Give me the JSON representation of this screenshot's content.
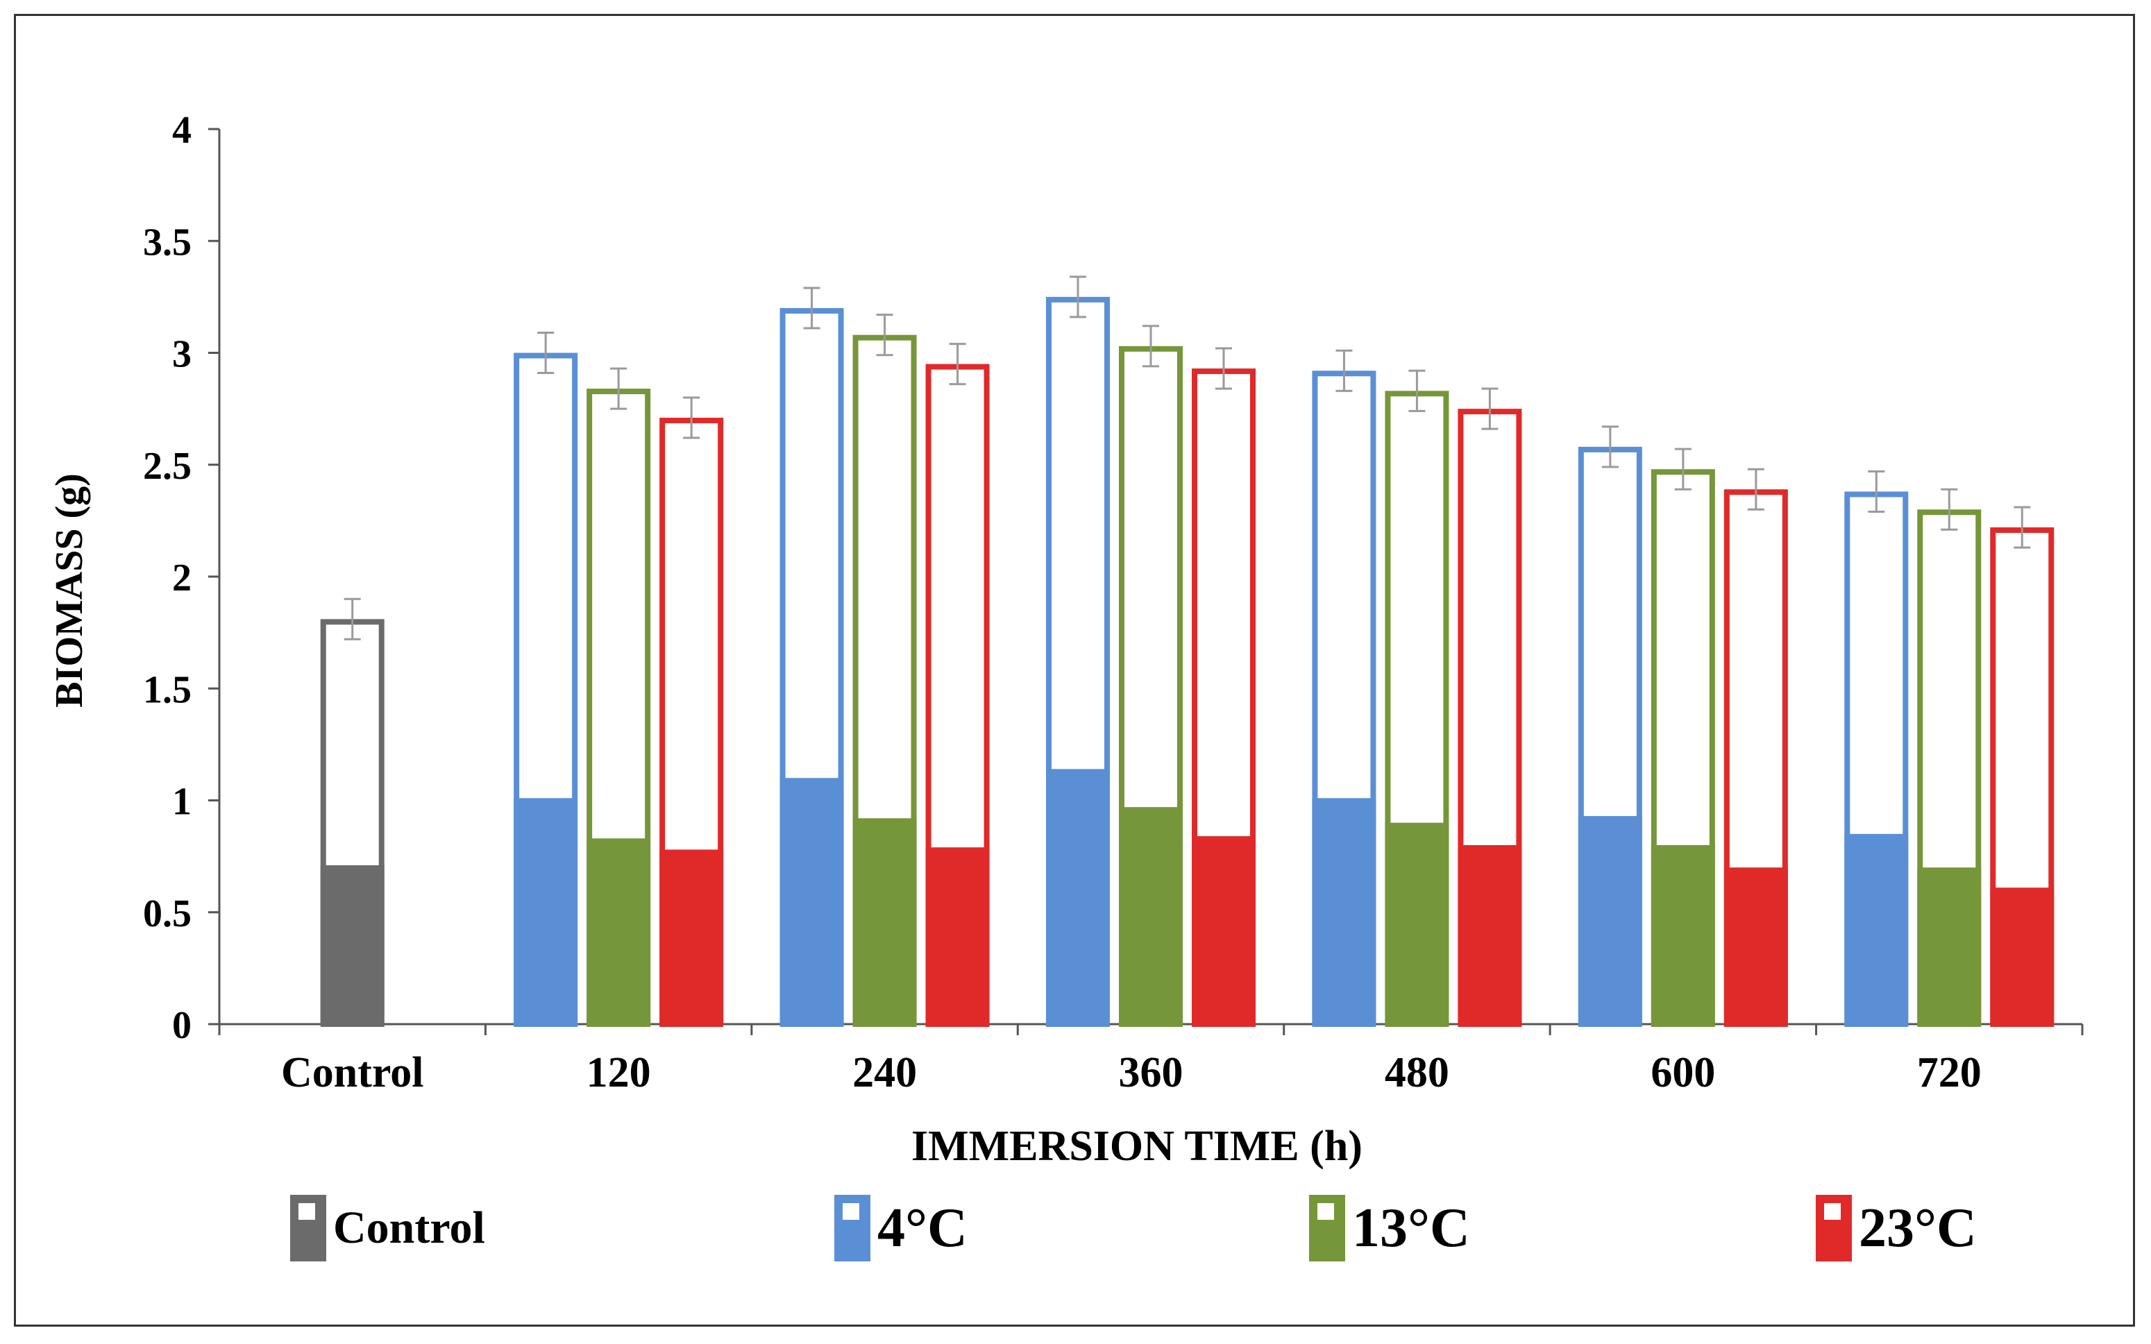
{
  "chart_data": {
    "type": "bar",
    "title": "",
    "xlabel": "IMMERSION TIME (h)",
    "ylabel": "BIOMASS (g)",
    "ylim": [
      0,
      4
    ],
    "yticks": [
      "0",
      "0.5",
      "1",
      "1.5",
      "2",
      "2.5",
      "3",
      "3.5",
      "4"
    ],
    "grid": false,
    "legend_position": "bottom",
    "categories": [
      "Control",
      "120",
      "240",
      "360",
      "480",
      "600",
      "720"
    ],
    "series": [
      {
        "name": "Control",
        "color": "#6b6b6b",
        "values": [
          1.81,
          null,
          null,
          null,
          null,
          null,
          null
        ],
        "inner_values": [
          0.71,
          null,
          null,
          null,
          null,
          null,
          null
        ],
        "errors": [
          0.09,
          null,
          null,
          null,
          null,
          null,
          null
        ]
      },
      {
        "name": "4°C",
        "color": "#5a8fd6",
        "values": [
          null,
          3.0,
          3.2,
          3.25,
          2.92,
          2.58,
          2.38
        ],
        "inner_values": [
          null,
          1.01,
          1.1,
          1.14,
          1.01,
          0.93,
          0.85
        ],
        "errors": [
          null,
          0.09,
          0.09,
          0.09,
          0.09,
          0.09,
          0.09
        ]
      },
      {
        "name": "13°C",
        "color": "#76963a",
        "values": [
          null,
          2.84,
          3.08,
          3.03,
          2.83,
          2.48,
          2.3
        ],
        "inner_values": [
          null,
          0.83,
          0.92,
          0.97,
          0.9,
          0.8,
          0.7
        ],
        "errors": [
          null,
          0.09,
          0.09,
          0.09,
          0.09,
          0.09,
          0.09
        ]
      },
      {
        "name": "23°C",
        "color": "#e02a2a",
        "values": [
          null,
          2.71,
          2.95,
          2.93,
          2.75,
          2.39,
          2.22
        ],
        "inner_values": [
          null,
          0.78,
          0.79,
          0.84,
          0.8,
          0.7,
          0.61
        ],
        "errors": [
          null,
          0.09,
          0.09,
          0.09,
          0.09,
          0.09,
          0.09
        ]
      }
    ]
  }
}
